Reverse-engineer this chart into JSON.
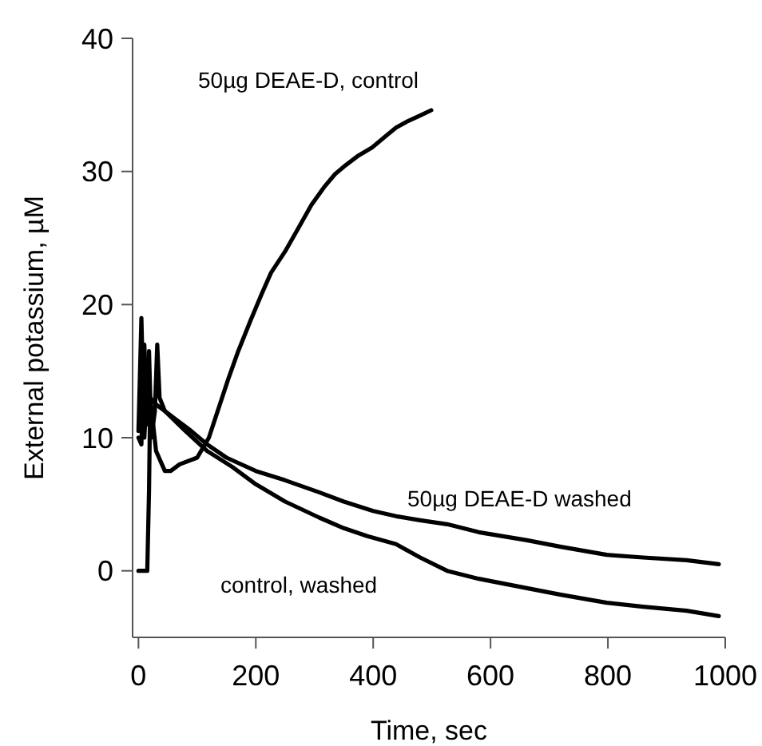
{
  "chart_data": {
    "type": "line",
    "xlabel": "Time, sec",
    "ylabel": "External potassium, µM",
    "xlim": [
      -10,
      1000
    ],
    "ylim": [
      -5,
      40
    ],
    "xticks": [
      0,
      200,
      400,
      600,
      800,
      1000
    ],
    "yticks": [
      0,
      10,
      20,
      30,
      40
    ],
    "grid": false,
    "marker": "none",
    "line_style": "solid",
    "series": [
      {
        "color": "#000000",
        "x": [
          0,
          8,
          15,
          18,
          20,
          25,
          30,
          35,
          40,
          45,
          55,
          70,
          100,
          120,
          135,
          153,
          170,
          191,
          210,
          226,
          250,
          272,
          295,
          316,
          335,
          354,
          375,
          398,
          420,
          439,
          460,
          480,
          499
        ],
        "values": [
          0,
          0,
          0,
          6,
          13,
          11,
          9,
          8.5,
          8,
          7.5,
          7.5,
          8,
          8.5,
          10,
          12,
          14.4,
          16.5,
          18.8,
          20.8,
          22.4,
          24,
          25.7,
          27.5,
          28.8,
          29.8,
          30.5,
          31.2,
          31.8,
          32.6,
          33.3,
          33.8,
          34.2,
          34.6
        ]
      },
      {
        "color": "#000000",
        "x": [
          0,
          5,
          10,
          15,
          20,
          30,
          45,
          60,
          90,
          117,
          150,
          200,
          250,
          308,
          350,
          400,
          439,
          480,
          526,
          580,
          662,
          720,
          798,
          860,
          934,
          989
        ],
        "values": [
          10,
          9.5,
          17,
          11,
          13,
          12.5,
          12,
          11.5,
          10.5,
          9.5,
          8.5,
          7.5,
          6.8,
          5.9,
          5.2,
          4.5,
          4.1,
          3.8,
          3.5,
          2.9,
          2.3,
          1.8,
          1.2,
          1,
          0.8,
          0.5
        ]
      },
      {
        "color": "#000000",
        "x": [
          0,
          5,
          10,
          18,
          22,
          28,
          32,
          36,
          45,
          80,
          117,
          160,
          200,
          250,
          308,
          350,
          390,
          439,
          480,
          526,
          580,
          662,
          720,
          798,
          860,
          934,
          989
        ],
        "values": [
          10.5,
          19,
          10,
          16.5,
          10,
          12,
          17,
          13,
          12,
          10.5,
          9,
          7.8,
          6.5,
          5.2,
          4,
          3.2,
          2.6,
          2,
          1,
          0,
          -0.6,
          -1.3,
          -1.8,
          -2.4,
          -2.7,
          -3,
          -3.4
        ]
      }
    ],
    "annotations": [
      "50µg DEAE-D, control",
      "50µg DEAE-D washed",
      "control, washed"
    ]
  }
}
